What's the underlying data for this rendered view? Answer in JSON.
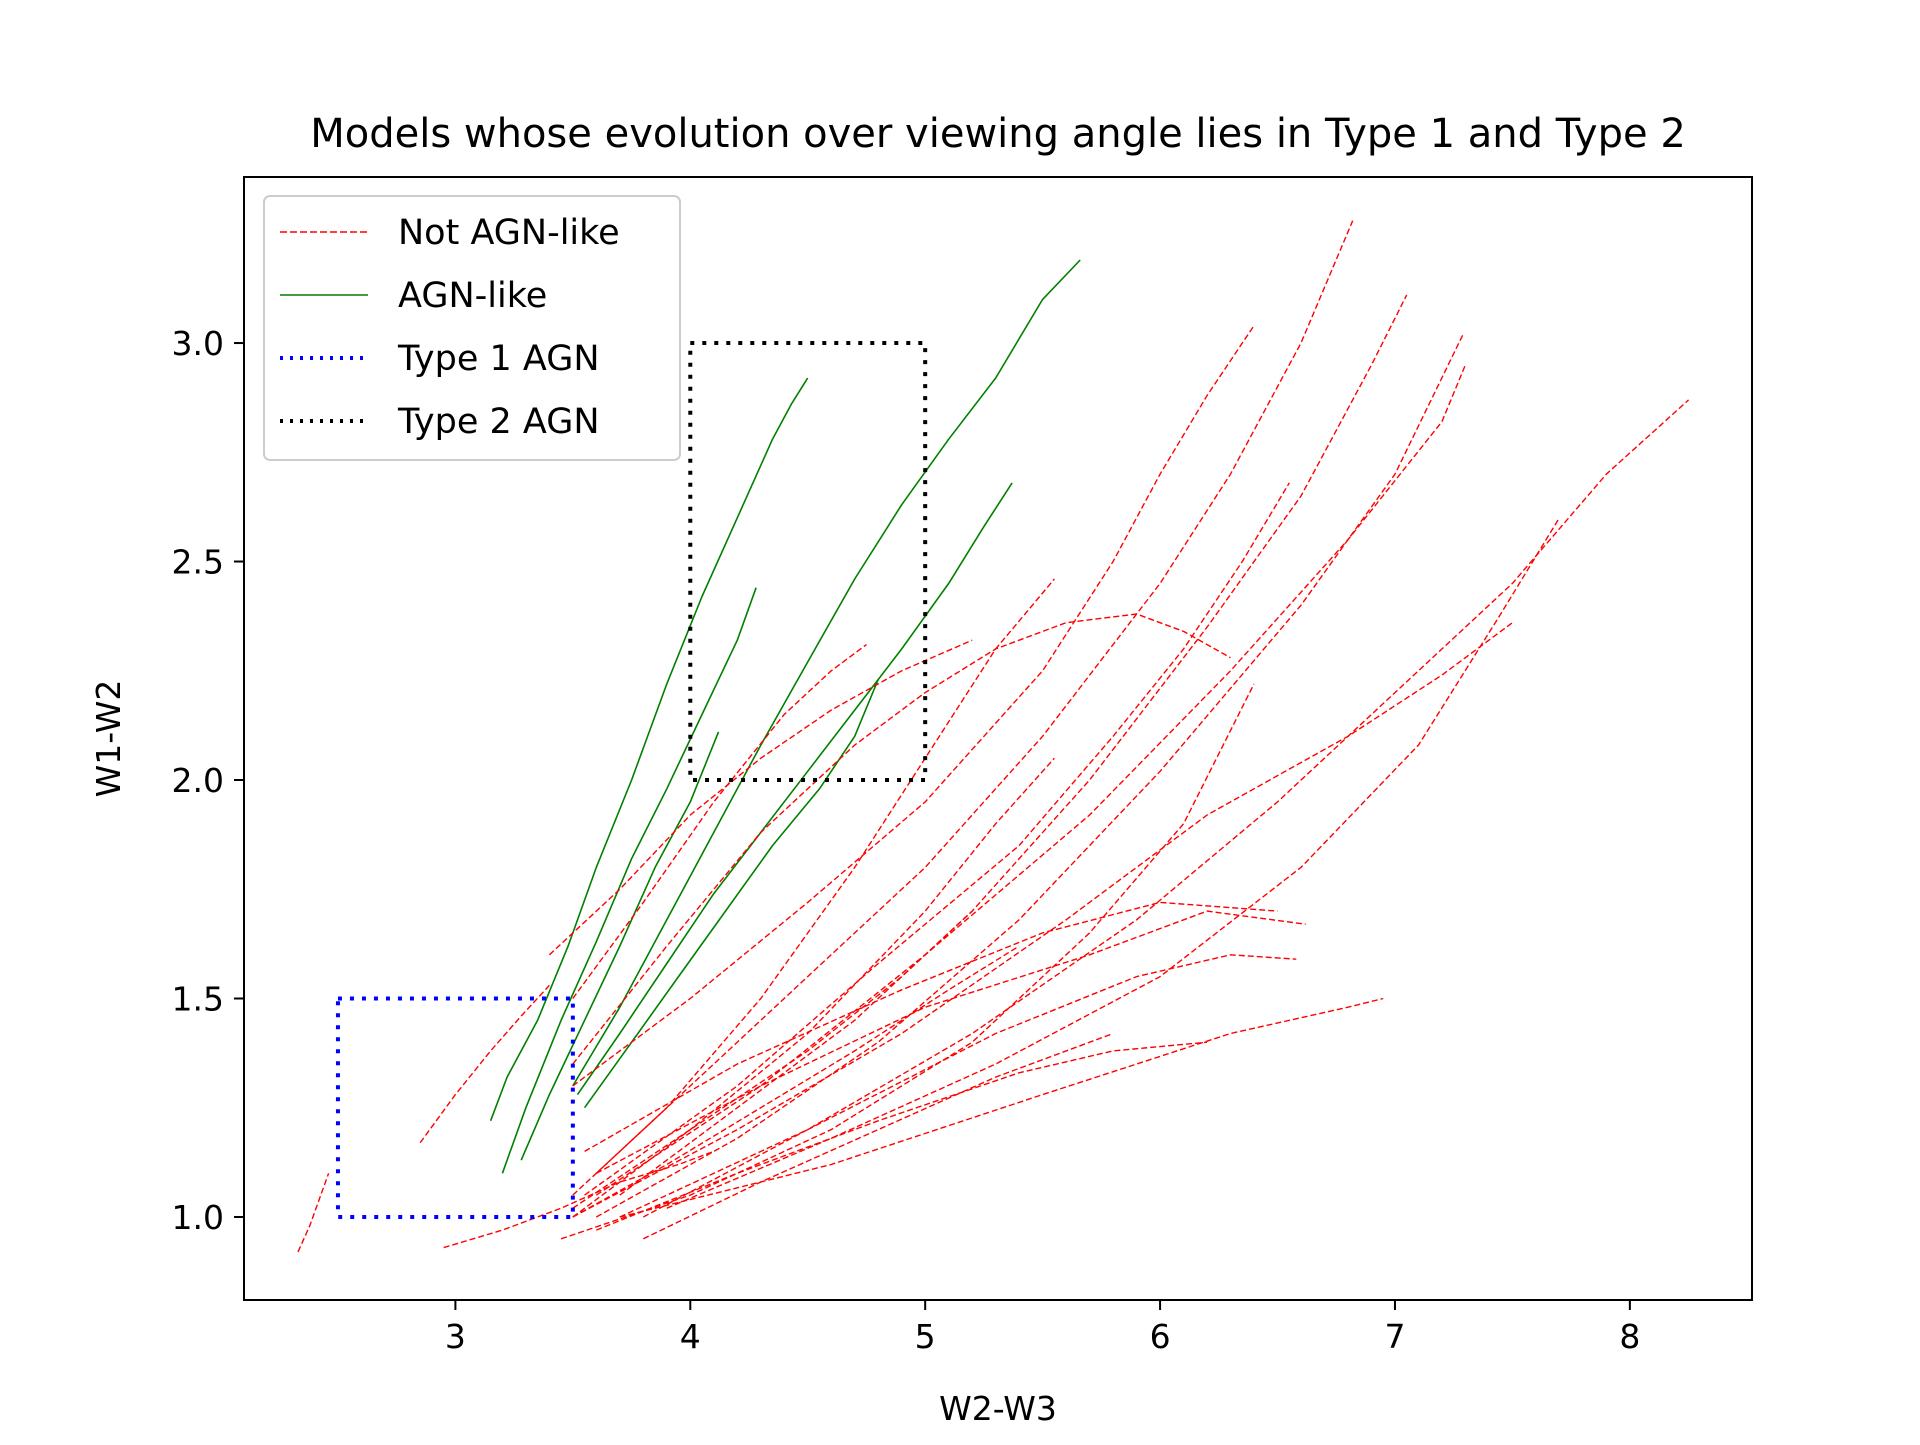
{
  "chart_data": {
    "type": "line",
    "title": "Models whose evolution over viewing angle lies in Type 1 and Type 2",
    "xlabel": "W2-W3",
    "ylabel": "W1-W2",
    "xlim": [
      2.1,
      8.52
    ],
    "ylim": [
      0.81,
      3.38
    ],
    "xticks": [
      {
        "value": 3,
        "label": "3"
      },
      {
        "value": 4,
        "label": "4"
      },
      {
        "value": 5,
        "label": "5"
      },
      {
        "value": 6,
        "label": "6"
      },
      {
        "value": 7,
        "label": "7"
      },
      {
        "value": 8,
        "label": "8"
      }
    ],
    "yticks": [
      {
        "value": 1.0,
        "label": "1.0"
      },
      {
        "value": 1.5,
        "label": "1.5"
      },
      {
        "value": 2.0,
        "label": "2.0"
      },
      {
        "value": 2.5,
        "label": "2.5"
      },
      {
        "value": 3.0,
        "label": "3.0"
      }
    ],
    "grid": false,
    "legend": {
      "placement": "top-left",
      "entries": [
        {
          "label": "Not AGN-like",
          "color": "#ff0000",
          "style": "dashed"
        },
        {
          "label": "AGN-like",
          "color": "#008000",
          "style": "solid"
        },
        {
          "label": "Type 1 AGN",
          "color": "#0000ff",
          "style": "dotted"
        },
        {
          "label": "Type 2 AGN",
          "color": "#000000",
          "style": "dotted"
        }
      ]
    },
    "regions": [
      {
        "name": "Type 1 AGN",
        "x": [
          2.5,
          3.5
        ],
        "y": [
          1.0,
          1.5
        ],
        "color": "#0000ff"
      },
      {
        "name": "Type 2 AGN",
        "x": [
          4.0,
          5.0
        ],
        "y": [
          2.0,
          3.0
        ],
        "color": "#000000"
      }
    ],
    "series": [
      {
        "group": "AGN-like",
        "color": "#008000",
        "x": [
          3.15,
          3.22,
          3.35,
          3.48,
          3.6,
          3.75,
          3.9,
          4.05,
          4.2,
          4.35,
          4.43,
          4.5
        ],
        "y": [
          1.22,
          1.32,
          1.45,
          1.62,
          1.8,
          2.0,
          2.22,
          2.42,
          2.6,
          2.78,
          2.86,
          2.92
        ]
      },
      {
        "group": "AGN-like",
        "color": "#008000",
        "x": [
          3.2,
          3.3,
          3.45,
          3.6,
          3.75,
          3.9,
          4.05,
          4.2,
          4.28
        ],
        "y": [
          1.1,
          1.25,
          1.45,
          1.63,
          1.82,
          1.98,
          2.15,
          2.32,
          2.44
        ]
      },
      {
        "group": "AGN-like",
        "color": "#008000",
        "x": [
          3.28,
          3.4,
          3.55,
          3.7,
          3.85,
          4.0,
          4.12
        ],
        "y": [
          1.13,
          1.28,
          1.45,
          1.62,
          1.8,
          1.95,
          2.11
        ]
      },
      {
        "group": "AGN-like",
        "color": "#008000",
        "x": [
          3.5,
          3.7,
          3.9,
          4.1,
          4.3,
          4.5,
          4.7,
          4.9,
          5.1,
          5.3,
          5.5,
          5.66
        ],
        "y": [
          1.3,
          1.48,
          1.68,
          1.88,
          2.08,
          2.27,
          2.46,
          2.63,
          2.78,
          2.92,
          3.1,
          3.19
        ]
      },
      {
        "group": "AGN-like",
        "color": "#008000",
        "x": [
          3.52,
          3.7,
          3.9,
          4.1,
          4.3,
          4.5,
          4.7,
          4.9,
          5.1,
          5.25,
          5.37
        ],
        "y": [
          1.28,
          1.42,
          1.58,
          1.74,
          1.88,
          2.02,
          2.16,
          2.3,
          2.45,
          2.58,
          2.68
        ]
      },
      {
        "group": "AGN-like",
        "color": "#008000",
        "x": [
          3.55,
          3.75,
          3.95,
          4.15,
          4.35,
          4.55,
          4.7,
          4.8
        ],
        "y": [
          1.25,
          1.4,
          1.55,
          1.7,
          1.85,
          1.98,
          2.1,
          2.23
        ]
      },
      {
        "group": "Not AGN-like",
        "color": "#ff0000",
        "x": [
          2.33,
          2.38,
          2.42,
          2.46
        ],
        "y": [
          0.92,
          0.98,
          1.04,
          1.1
        ]
      },
      {
        "group": "Not AGN-like",
        "color": "#ff0000",
        "x": [
          2.85,
          3.0,
          3.15,
          3.28,
          3.4
        ],
        "y": [
          1.17,
          1.28,
          1.38,
          1.46,
          1.53
        ]
      },
      {
        "group": "Not AGN-like",
        "color": "#ff0000",
        "x": [
          2.95,
          3.2,
          3.45,
          3.7,
          3.95,
          4.1
        ],
        "y": [
          0.93,
          0.97,
          1.02,
          1.08,
          1.12,
          1.15
        ]
      },
      {
        "group": "Not AGN-like",
        "color": "#ff0000",
        "x": [
          3.4,
          3.7,
          4.0,
          4.3,
          4.6,
          4.9,
          5.2
        ],
        "y": [
          1.6,
          1.75,
          1.92,
          2.05,
          2.16,
          2.25,
          2.32
        ]
      },
      {
        "group": "Not AGN-like",
        "color": "#ff0000",
        "x": [
          3.5,
          3.8,
          4.1,
          4.4,
          4.6,
          4.75
        ],
        "y": [
          1.5,
          1.72,
          1.95,
          2.15,
          2.25,
          2.31
        ]
      },
      {
        "group": "Not AGN-like",
        "color": "#ff0000",
        "x": [
          3.5,
          3.9,
          4.3,
          4.7,
          5.0,
          5.3,
          5.6,
          5.9,
          6.1,
          6.3
        ],
        "y": [
          1.35,
          1.62,
          1.88,
          2.08,
          2.2,
          2.3,
          2.36,
          2.38,
          2.34,
          2.28
        ]
      },
      {
        "group": "Not AGN-like",
        "color": "#ff0000",
        "x": [
          3.5,
          4.0,
          4.5,
          5.0,
          5.5,
          5.8,
          6.0,
          6.2,
          6.4
        ],
        "y": [
          1.3,
          1.5,
          1.72,
          1.95,
          2.25,
          2.5,
          2.7,
          2.88,
          3.04
        ]
      },
      {
        "group": "Not AGN-like",
        "color": "#ff0000",
        "x": [
          3.6,
          4.0,
          4.5,
          5.0,
          5.5,
          6.0,
          6.3,
          6.6,
          6.82
        ],
        "y": [
          1.1,
          1.3,
          1.55,
          1.8,
          2.1,
          2.45,
          2.7,
          3.0,
          3.28
        ]
      },
      {
        "group": "Not AGN-like",
        "color": "#ff0000",
        "x": [
          3.7,
          4.2,
          4.7,
          5.2,
          5.7,
          6.2,
          6.6,
          6.9,
          7.05
        ],
        "y": [
          1.05,
          1.25,
          1.45,
          1.7,
          2.0,
          2.35,
          2.65,
          2.95,
          3.11
        ]
      },
      {
        "group": "Not AGN-like",
        "color": "#ff0000",
        "x": [
          3.6,
          4.2,
          4.8,
          5.4,
          6.0,
          6.6,
          7.0,
          7.29
        ],
        "y": [
          1.0,
          1.18,
          1.4,
          1.68,
          2.02,
          2.4,
          2.7,
          3.02
        ]
      },
      {
        "group": "Not AGN-like",
        "color": "#ff0000",
        "x": [
          3.6,
          4.3,
          5.0,
          5.7,
          6.3,
          6.8,
          7.2,
          7.3
        ],
        "y": [
          1.05,
          1.3,
          1.6,
          1.92,
          2.25,
          2.55,
          2.82,
          2.95
        ]
      },
      {
        "group": "Not AGN-like",
        "color": "#ff0000",
        "x": [
          3.8,
          4.5,
          5.2,
          5.9,
          6.5,
          7.0,
          7.5,
          7.9,
          8.25
        ],
        "y": [
          1.0,
          1.2,
          1.42,
          1.68,
          1.95,
          2.2,
          2.45,
          2.7,
          2.87
        ]
      },
      {
        "group": "Not AGN-like",
        "color": "#ff0000",
        "x": [
          3.9,
          4.6,
          5.3,
          6.0,
          6.6,
          7.1,
          7.45,
          7.7
        ],
        "y": [
          1.02,
          1.18,
          1.35,
          1.55,
          1.8,
          2.08,
          2.38,
          2.6
        ]
      },
      {
        "group": "Not AGN-like",
        "color": "#ff0000",
        "x": [
          3.5,
          4.2,
          4.9,
          5.6,
          6.2,
          6.8,
          7.2,
          7.5
        ],
        "y": [
          1.0,
          1.2,
          1.42,
          1.68,
          1.92,
          2.1,
          2.24,
          2.36
        ]
      },
      {
        "group": "Not AGN-like",
        "color": "#ff0000",
        "x": [
          3.55,
          4.2,
          4.8,
          5.4,
          5.8,
          6.1,
          6.35,
          6.55
        ],
        "y": [
          1.05,
          1.3,
          1.58,
          1.85,
          2.1,
          2.3,
          2.5,
          2.68
        ]
      },
      {
        "group": "Not AGN-like",
        "color": "#ff0000",
        "x": [
          3.55,
          4.2,
          4.9,
          5.5,
          6.0,
          6.5
        ],
        "y": [
          1.15,
          1.35,
          1.52,
          1.65,
          1.72,
          1.7
        ]
      },
      {
        "group": "Not AGN-like",
        "color": "#ff0000",
        "x": [
          3.6,
          4.3,
          5.0,
          5.7,
          6.2,
          6.62
        ],
        "y": [
          1.1,
          1.3,
          1.48,
          1.6,
          1.7,
          1.67
        ]
      },
      {
        "group": "Not AGN-like",
        "color": "#ff0000",
        "x": [
          3.7,
          4.5,
          5.3,
          5.9,
          6.3,
          6.58
        ],
        "y": [
          1.0,
          1.2,
          1.42,
          1.55,
          1.6,
          1.59
        ]
      },
      {
        "group": "Not AGN-like",
        "color": "#ff0000",
        "x": [
          3.7,
          4.6,
          5.5,
          6.3,
          6.8,
          6.95
        ],
        "y": [
          1.0,
          1.12,
          1.28,
          1.42,
          1.48,
          1.5
        ]
      },
      {
        "group": "Not AGN-like",
        "color": "#ff0000",
        "x": [
          3.6,
          4.2,
          4.8,
          5.4,
          5.8,
          6.2
        ],
        "y": [
          0.97,
          1.1,
          1.22,
          1.33,
          1.38,
          1.4
        ]
      },
      {
        "group": "Not AGN-like",
        "color": "#ff0000",
        "x": [
          3.5,
          4.0,
          4.5,
          5.0,
          5.3,
          5.55
        ],
        "y": [
          1.0,
          1.2,
          1.42,
          1.7,
          1.9,
          2.05
        ]
      },
      {
        "group": "Not AGN-like",
        "color": "#ff0000",
        "x": [
          3.5,
          3.9,
          4.3,
          4.7,
          5.0,
          5.3,
          5.55
        ],
        "y": [
          1.05,
          1.25,
          1.5,
          1.8,
          2.05,
          2.3,
          2.46
        ]
      },
      {
        "group": "Not AGN-like",
        "color": "#ff0000",
        "x": [
          3.5,
          4.0,
          4.5,
          4.9,
          5.2
        ],
        "y": [
          1.02,
          1.2,
          1.38,
          1.55,
          1.7
        ]
      },
      {
        "group": "Not AGN-like",
        "color": "#ff0000",
        "x": [
          3.45,
          4.0,
          4.6,
          5.2,
          5.7,
          6.1,
          6.4
        ],
        "y": [
          0.95,
          1.05,
          1.2,
          1.4,
          1.65,
          1.9,
          2.22
        ]
      },
      {
        "group": "Not AGN-like",
        "color": "#ff0000",
        "x": [
          3.8,
          4.3,
          4.8,
          5.3,
          5.8
        ],
        "y": [
          0.95,
          1.08,
          1.2,
          1.32,
          1.42
        ]
      },
      {
        "group": "Not AGN-like",
        "color": "#ff0000",
        "x": [
          3.5,
          3.9,
          4.3,
          4.7,
          5.1,
          5.4
        ],
        "y": [
          1.0,
          1.12,
          1.25,
          1.38,
          1.52,
          1.62
        ]
      }
    ]
  }
}
